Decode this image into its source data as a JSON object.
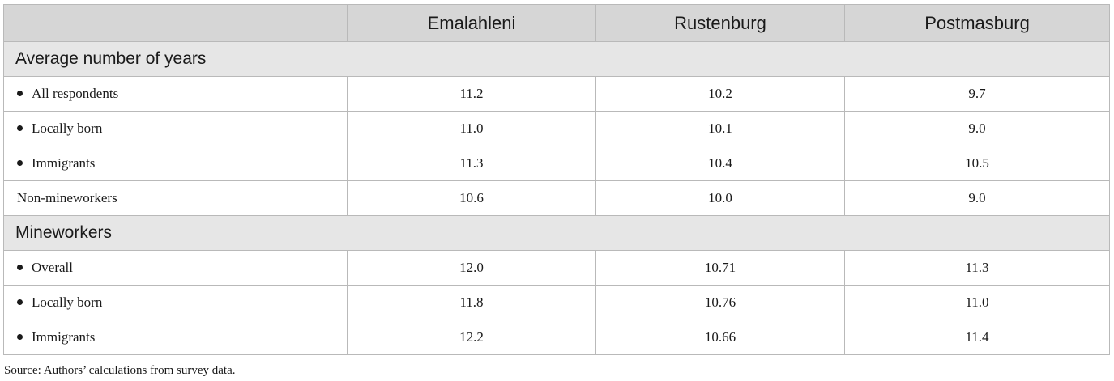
{
  "table": {
    "columns": [
      "",
      "Emalahleni",
      "Rustenburg",
      "Postmasburg"
    ],
    "rows": [
      {
        "type": "section",
        "label": "Average number of years"
      },
      {
        "type": "data",
        "bullet": true,
        "label": "All respondents",
        "values": [
          "11.2",
          "10.2",
          "9.7"
        ]
      },
      {
        "type": "data",
        "bullet": true,
        "label": "Locally born",
        "values": [
          "11.0",
          "10.1",
          "9.0"
        ]
      },
      {
        "type": "data",
        "bullet": true,
        "label": "Immigrants",
        "values": [
          "11.3",
          "10.4",
          "10.5"
        ]
      },
      {
        "type": "data",
        "bullet": false,
        "label": "Non-mineworkers",
        "values": [
          "10.6",
          "10.0",
          "9.0"
        ]
      },
      {
        "type": "section",
        "label": "Mineworkers"
      },
      {
        "type": "data",
        "bullet": true,
        "label": "Overall",
        "values": [
          "12.0",
          "10.71",
          "11.3"
        ]
      },
      {
        "type": "data",
        "bullet": true,
        "label": "Locally born",
        "values": [
          "11.8",
          "10.76",
          "11.0"
        ]
      },
      {
        "type": "data",
        "bullet": true,
        "label": "Immigrants",
        "values": [
          "12.2",
          "10.66",
          "11.4"
        ]
      }
    ]
  },
  "source_note": "Source: Authors’ calculations from survey data."
}
